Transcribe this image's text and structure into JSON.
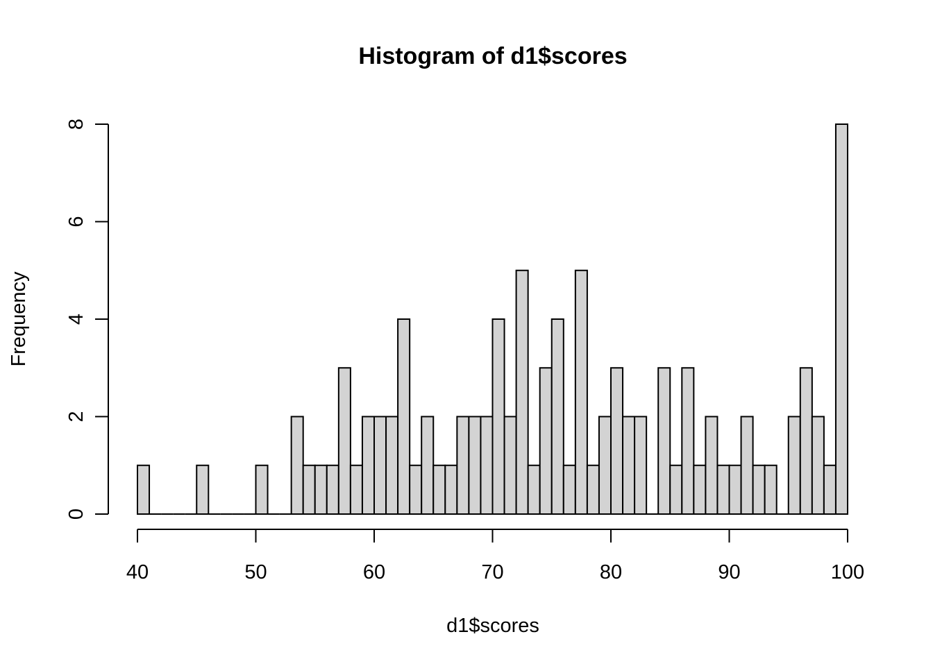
{
  "chart_data": {
    "type": "bar",
    "title": "Histogram of d1$scores",
    "xlabel": "d1$scores",
    "ylabel": "Frequency",
    "xlim": [
      40,
      100
    ],
    "ylim": [
      0,
      8
    ],
    "x_ticks": [
      "40",
      "50",
      "60",
      "70",
      "80",
      "90",
      "100"
    ],
    "y_ticks": [
      "0",
      "2",
      "4",
      "6",
      "8"
    ],
    "bin_width": 1,
    "bin_start": 40,
    "values": [
      1,
      0,
      0,
      0,
      0,
      1,
      0,
      0,
      0,
      0,
      1,
      0,
      0,
      2,
      1,
      1,
      1,
      3,
      1,
      2,
      2,
      2,
      4,
      1,
      2,
      1,
      1,
      2,
      2,
      2,
      4,
      2,
      5,
      1,
      3,
      4,
      1,
      5,
      1,
      2,
      3,
      2,
      2,
      0,
      3,
      1,
      3,
      1,
      2,
      1,
      1,
      2,
      1,
      1,
      0,
      2,
      3,
      2,
      1,
      8
    ],
    "bar_color": "#d3d3d3",
    "grid": false,
    "legend": "none"
  }
}
